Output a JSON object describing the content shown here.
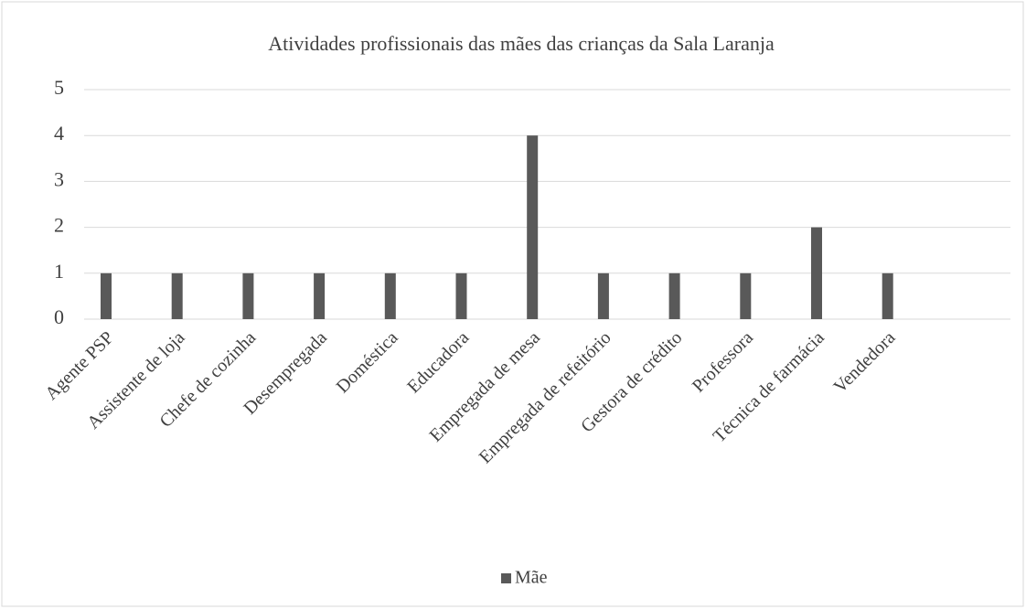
{
  "chart_data": {
    "type": "bar",
    "title": "Atividades profissionais das mães das crianças da Sala Laranja",
    "categories": [
      "Agente PSP",
      "Assistente de loja",
      "Chefe de cozinha",
      "Desempregada",
      "Doméstica",
      "Educadora",
      "Empregada de mesa",
      "Empregada de refeitório",
      "Gestora de crédito",
      "Professora",
      "Técnica de farmácia",
      "Vendedora"
    ],
    "series": [
      {
        "name": "Mãe",
        "color": "#595959",
        "values": [
          1,
          1,
          1,
          1,
          1,
          1,
          4,
          1,
          1,
          1,
          2,
          1
        ]
      }
    ],
    "ylim": [
      0,
      5
    ],
    "yticks": [
      0,
      1,
      2,
      3,
      4,
      5
    ],
    "grid": true,
    "legend": "bottom"
  }
}
